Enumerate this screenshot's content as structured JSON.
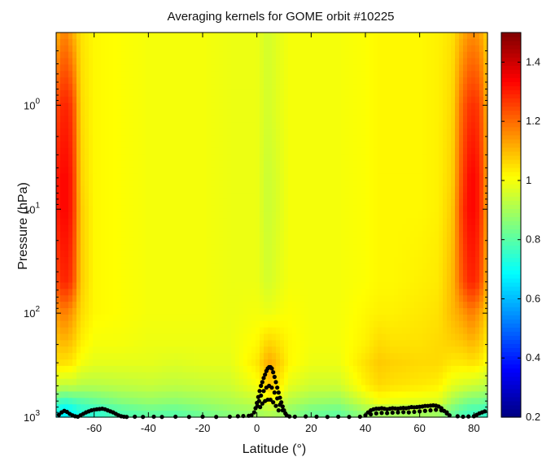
{
  "chart_data": {
    "type": "heatmap",
    "title": "Averaging kernels for GOME orbit #10225",
    "xlabel": "Latitude (°)",
    "ylabel": "Pressure (hPa)",
    "x_range": [
      -74,
      85
    ],
    "y_range_hpa": [
      0.2,
      1000
    ],
    "y_scale": "log",
    "y_reversed": true,
    "x_ticks": [
      -60,
      -40,
      -20,
      0,
      20,
      40,
      60,
      80
    ],
    "x_tick_labels": [
      "-60",
      "-40",
      "-20",
      "0",
      "20",
      "40",
      "60",
      "80"
    ],
    "y_ticks": [
      {
        "value": 1,
        "base": "10",
        "exp": "0"
      },
      {
        "value": 10,
        "base": "10",
        "exp": "1"
      },
      {
        "value": 100,
        "base": "10",
        "exp": "2"
      },
      {
        "value": 1000,
        "base": "10",
        "exp": "3"
      }
    ],
    "colorbar": {
      "colormap": "jet",
      "range": [
        0.2,
        1.5
      ],
      "ticks": [
        0.2,
        0.4,
        0.6,
        0.8,
        1,
        1.2,
        1.4
      ],
      "tick_labels": [
        "0.2",
        "0.4",
        "0.6",
        "0.8",
        "1",
        "1.2",
        "1.4"
      ]
    },
    "field_grid": {
      "latitudes": [
        -74,
        -71,
        -68,
        -65,
        -60,
        -50,
        -40,
        -30,
        -20,
        -10,
        0,
        3,
        5,
        8,
        12,
        20,
        30,
        40,
        45,
        50,
        60,
        67,
        72,
        76,
        79,
        82,
        85
      ],
      "pressures_hpa": [
        0.2,
        1,
        5,
        10,
        50,
        100,
        200,
        300,
        500,
        700,
        850,
        1000
      ],
      "values": [
        [
          1.1,
          1.24,
          1.3,
          1.3,
          1.24,
          1.14,
          1.08,
          1.05,
          0.95,
          0.8,
          0.72,
          0.7
        ],
        [
          1.18,
          1.3,
          1.34,
          1.34,
          1.3,
          1.18,
          1.1,
          1.05,
          0.93,
          0.76,
          0.68,
          0.66
        ],
        [
          1.12,
          1.26,
          1.3,
          1.3,
          1.26,
          1.14,
          1.08,
          1.04,
          0.94,
          0.78,
          0.7,
          0.68
        ],
        [
          1.05,
          1.06,
          1.07,
          1.08,
          1.08,
          1.06,
          1.03,
          1.0,
          0.92,
          0.8,
          0.74,
          0.72
        ],
        [
          1.02,
          1.02,
          1.02,
          1.02,
          1.02,
          1.02,
          1.0,
          0.98,
          0.92,
          0.82,
          0.76,
          0.74
        ],
        [
          1.01,
          1.01,
          1.01,
          1.01,
          1.01,
          1.01,
          1.0,
          0.98,
          0.93,
          0.86,
          0.8,
          0.78
        ],
        [
          1.0,
          1.0,
          1.0,
          1.0,
          1.0,
          1.0,
          0.99,
          0.98,
          0.94,
          0.88,
          0.83,
          0.8
        ],
        [
          1.0,
          1.0,
          1.0,
          1.0,
          1.0,
          1.0,
          0.99,
          0.97,
          0.93,
          0.87,
          0.82,
          0.79
        ],
        [
          1.0,
          1.0,
          1.0,
          1.0,
          1.0,
          1.0,
          0.99,
          0.98,
          0.94,
          0.89,
          0.85,
          0.82
        ],
        [
          0.99,
          0.99,
          0.99,
          0.99,
          0.99,
          0.99,
          0.99,
          0.98,
          0.95,
          0.91,
          0.88,
          0.85
        ],
        [
          0.99,
          0.99,
          0.99,
          0.99,
          0.99,
          1.0,
          1.02,
          1.04,
          1.0,
          0.94,
          0.9,
          0.88
        ],
        [
          0.96,
          0.96,
          0.95,
          0.95,
          0.96,
          0.99,
          1.06,
          1.1,
          1.06,
          0.98,
          0.92,
          0.9
        ],
        [
          0.96,
          0.96,
          0.95,
          0.95,
          0.96,
          0.99,
          1.07,
          1.12,
          1.08,
          1.0,
          0.93,
          0.9
        ],
        [
          0.98,
          0.98,
          0.97,
          0.97,
          0.98,
          1.0,
          1.05,
          1.08,
          1.04,
          0.97,
          0.91,
          0.89
        ],
        [
          1.0,
          1.0,
          1.0,
          1.0,
          1.0,
          1.01,
          1.02,
          1.02,
          0.98,
          0.92,
          0.88,
          0.86
        ],
        [
          1.0,
          1.0,
          1.0,
          1.0,
          1.0,
          1.0,
          1.0,
          0.99,
          0.95,
          0.89,
          0.84,
          0.82
        ],
        [
          1.0,
          1.0,
          1.0,
          1.0,
          1.0,
          1.0,
          1.0,
          0.99,
          0.95,
          0.88,
          0.83,
          0.8
        ],
        [
          1.01,
          1.01,
          1.01,
          1.01,
          1.01,
          1.02,
          1.03,
          1.05,
          1.03,
          0.96,
          0.9,
          0.87
        ],
        [
          1.02,
          1.02,
          1.02,
          1.02,
          1.02,
          1.03,
          1.06,
          1.08,
          1.06,
          1.0,
          0.92,
          0.88
        ],
        [
          1.02,
          1.02,
          1.02,
          1.02,
          1.02,
          1.03,
          1.05,
          1.07,
          1.05,
          0.99,
          0.92,
          0.88
        ],
        [
          1.02,
          1.02,
          1.02,
          1.02,
          1.03,
          1.04,
          1.05,
          1.06,
          1.04,
          0.98,
          0.92,
          0.88
        ],
        [
          1.03,
          1.03,
          1.03,
          1.03,
          1.04,
          1.05,
          1.06,
          1.06,
          1.03,
          0.97,
          0.91,
          0.88
        ],
        [
          1.05,
          1.06,
          1.07,
          1.08,
          1.1,
          1.1,
          1.07,
          1.04,
          0.98,
          0.9,
          0.84,
          0.82
        ],
        [
          1.12,
          1.22,
          1.26,
          1.28,
          1.24,
          1.14,
          1.08,
          1.04,
          0.96,
          0.86,
          0.8,
          0.78
        ],
        [
          1.16,
          1.28,
          1.34,
          1.34,
          1.3,
          1.18,
          1.1,
          1.05,
          0.95,
          0.84,
          0.78,
          0.76
        ],
        [
          1.14,
          1.26,
          1.3,
          1.3,
          1.26,
          1.14,
          1.08,
          1.04,
          0.94,
          0.84,
          0.78,
          0.76
        ],
        [
          1.06,
          1.1,
          1.12,
          1.12,
          1.1,
          1.06,
          1.03,
          1.0,
          0.92,
          0.82,
          0.76,
          0.74
        ]
      ]
    },
    "overlay_points": [
      [
        -73,
        950
      ],
      [
        -72,
        900
      ],
      [
        -71,
        870
      ],
      [
        -70,
        890
      ],
      [
        -69,
        930
      ],
      [
        -68,
        960
      ],
      [
        -67,
        980
      ],
      [
        -66,
        990
      ],
      [
        -65,
        960
      ],
      [
        -64,
        930
      ],
      [
        -63,
        900
      ],
      [
        -62,
        880
      ],
      [
        -61,
        860
      ],
      [
        -60,
        850
      ],
      [
        -59,
        840
      ],
      [
        -58,
        835
      ],
      [
        -57,
        830
      ],
      [
        -56,
        840
      ],
      [
        -55,
        860
      ],
      [
        -54,
        880
      ],
      [
        -53,
        900
      ],
      [
        -52,
        930
      ],
      [
        -51,
        960
      ],
      [
        -50,
        980
      ],
      [
        -49,
        990
      ],
      [
        -48,
        995
      ],
      [
        -45,
        990
      ],
      [
        -42,
        995
      ],
      [
        -38,
        990
      ],
      [
        -35,
        995
      ],
      [
        -30,
        990
      ],
      [
        -25,
        995
      ],
      [
        -20,
        990
      ],
      [
        -15,
        995
      ],
      [
        -10,
        990
      ],
      [
        -7,
        980
      ],
      [
        -5,
        975
      ],
      [
        -3,
        970
      ],
      [
        -2,
        960
      ],
      [
        -1,
        900
      ],
      [
        -0.5,
        820
      ],
      [
        0,
        730
      ],
      [
        0.5,
        640
      ],
      [
        1,
        560
      ],
      [
        1.5,
        500
      ],
      [
        2,
        460
      ],
      [
        2.5,
        420
      ],
      [
        3,
        390
      ],
      [
        3.5,
        360
      ],
      [
        4,
        340
      ],
      [
        4.5,
        330
      ],
      [
        5,
        330
      ],
      [
        5.5,
        340
      ],
      [
        6,
        370
      ],
      [
        6.5,
        410
      ],
      [
        7,
        460
      ],
      [
        7.5,
        520
      ],
      [
        8,
        580
      ],
      [
        8.5,
        650
      ],
      [
        9,
        720
      ],
      [
        9.5,
        790
      ],
      [
        10,
        860
      ],
      [
        10.5,
        920
      ],
      [
        11,
        960
      ],
      [
        12,
        985
      ],
      [
        0.2,
        780
      ],
      [
        0.8,
        700
      ],
      [
        1.5,
        620
      ],
      [
        2.5,
        560
      ],
      [
        3.5,
        520
      ],
      [
        4.5,
        500
      ],
      [
        5.5,
        520
      ],
      [
        6.5,
        580
      ],
      [
        7.5,
        660
      ],
      [
        8.5,
        760
      ],
      [
        9.5,
        860
      ],
      [
        1.2,
        800
      ],
      [
        2,
        740
      ],
      [
        3,
        700
      ],
      [
        4,
        680
      ],
      [
        5,
        680
      ],
      [
        6,
        720
      ],
      [
        7,
        780
      ],
      [
        8,
        860
      ],
      [
        14,
        990
      ],
      [
        18,
        985
      ],
      [
        22,
        990
      ],
      [
        26,
        995
      ],
      [
        30,
        990
      ],
      [
        34,
        995
      ],
      [
        38,
        990
      ],
      [
        40,
        960
      ],
      [
        41,
        900
      ],
      [
        42,
        860
      ],
      [
        43,
        840
      ],
      [
        44,
        830
      ],
      [
        45,
        830
      ],
      [
        46,
        820
      ],
      [
        47,
        830
      ],
      [
        48,
        840
      ],
      [
        49,
        830
      ],
      [
        50,
        820
      ],
      [
        51,
        825
      ],
      [
        52,
        830
      ],
      [
        53,
        820
      ],
      [
        54,
        815
      ],
      [
        55,
        820
      ],
      [
        56,
        810
      ],
      [
        57,
        800
      ],
      [
        58,
        805
      ],
      [
        59,
        800
      ],
      [
        60,
        795
      ],
      [
        61,
        790
      ],
      [
        62,
        780
      ],
      [
        63,
        780
      ],
      [
        64,
        775
      ],
      [
        65,
        770
      ],
      [
        66,
        775
      ],
      [
        67,
        790
      ],
      [
        68,
        820
      ],
      [
        69,
        870
      ],
      [
        70,
        920
      ],
      [
        71,
        960
      ],
      [
        42,
        940
      ],
      [
        44,
        920
      ],
      [
        46,
        910
      ],
      [
        48,
        915
      ],
      [
        50,
        905
      ],
      [
        52,
        900
      ],
      [
        54,
        895
      ],
      [
        56,
        900
      ],
      [
        58,
        890
      ],
      [
        60,
        880
      ],
      [
        62,
        870
      ],
      [
        64,
        860
      ],
      [
        66,
        850
      ],
      [
        68,
        860
      ],
      [
        70,
        900
      ],
      [
        74,
        980
      ],
      [
        76,
        990
      ],
      [
        78,
        985
      ],
      [
        80,
        980
      ],
      [
        81,
        950
      ],
      [
        82,
        920
      ],
      [
        83,
        900
      ],
      [
        84,
        880
      ]
    ]
  }
}
